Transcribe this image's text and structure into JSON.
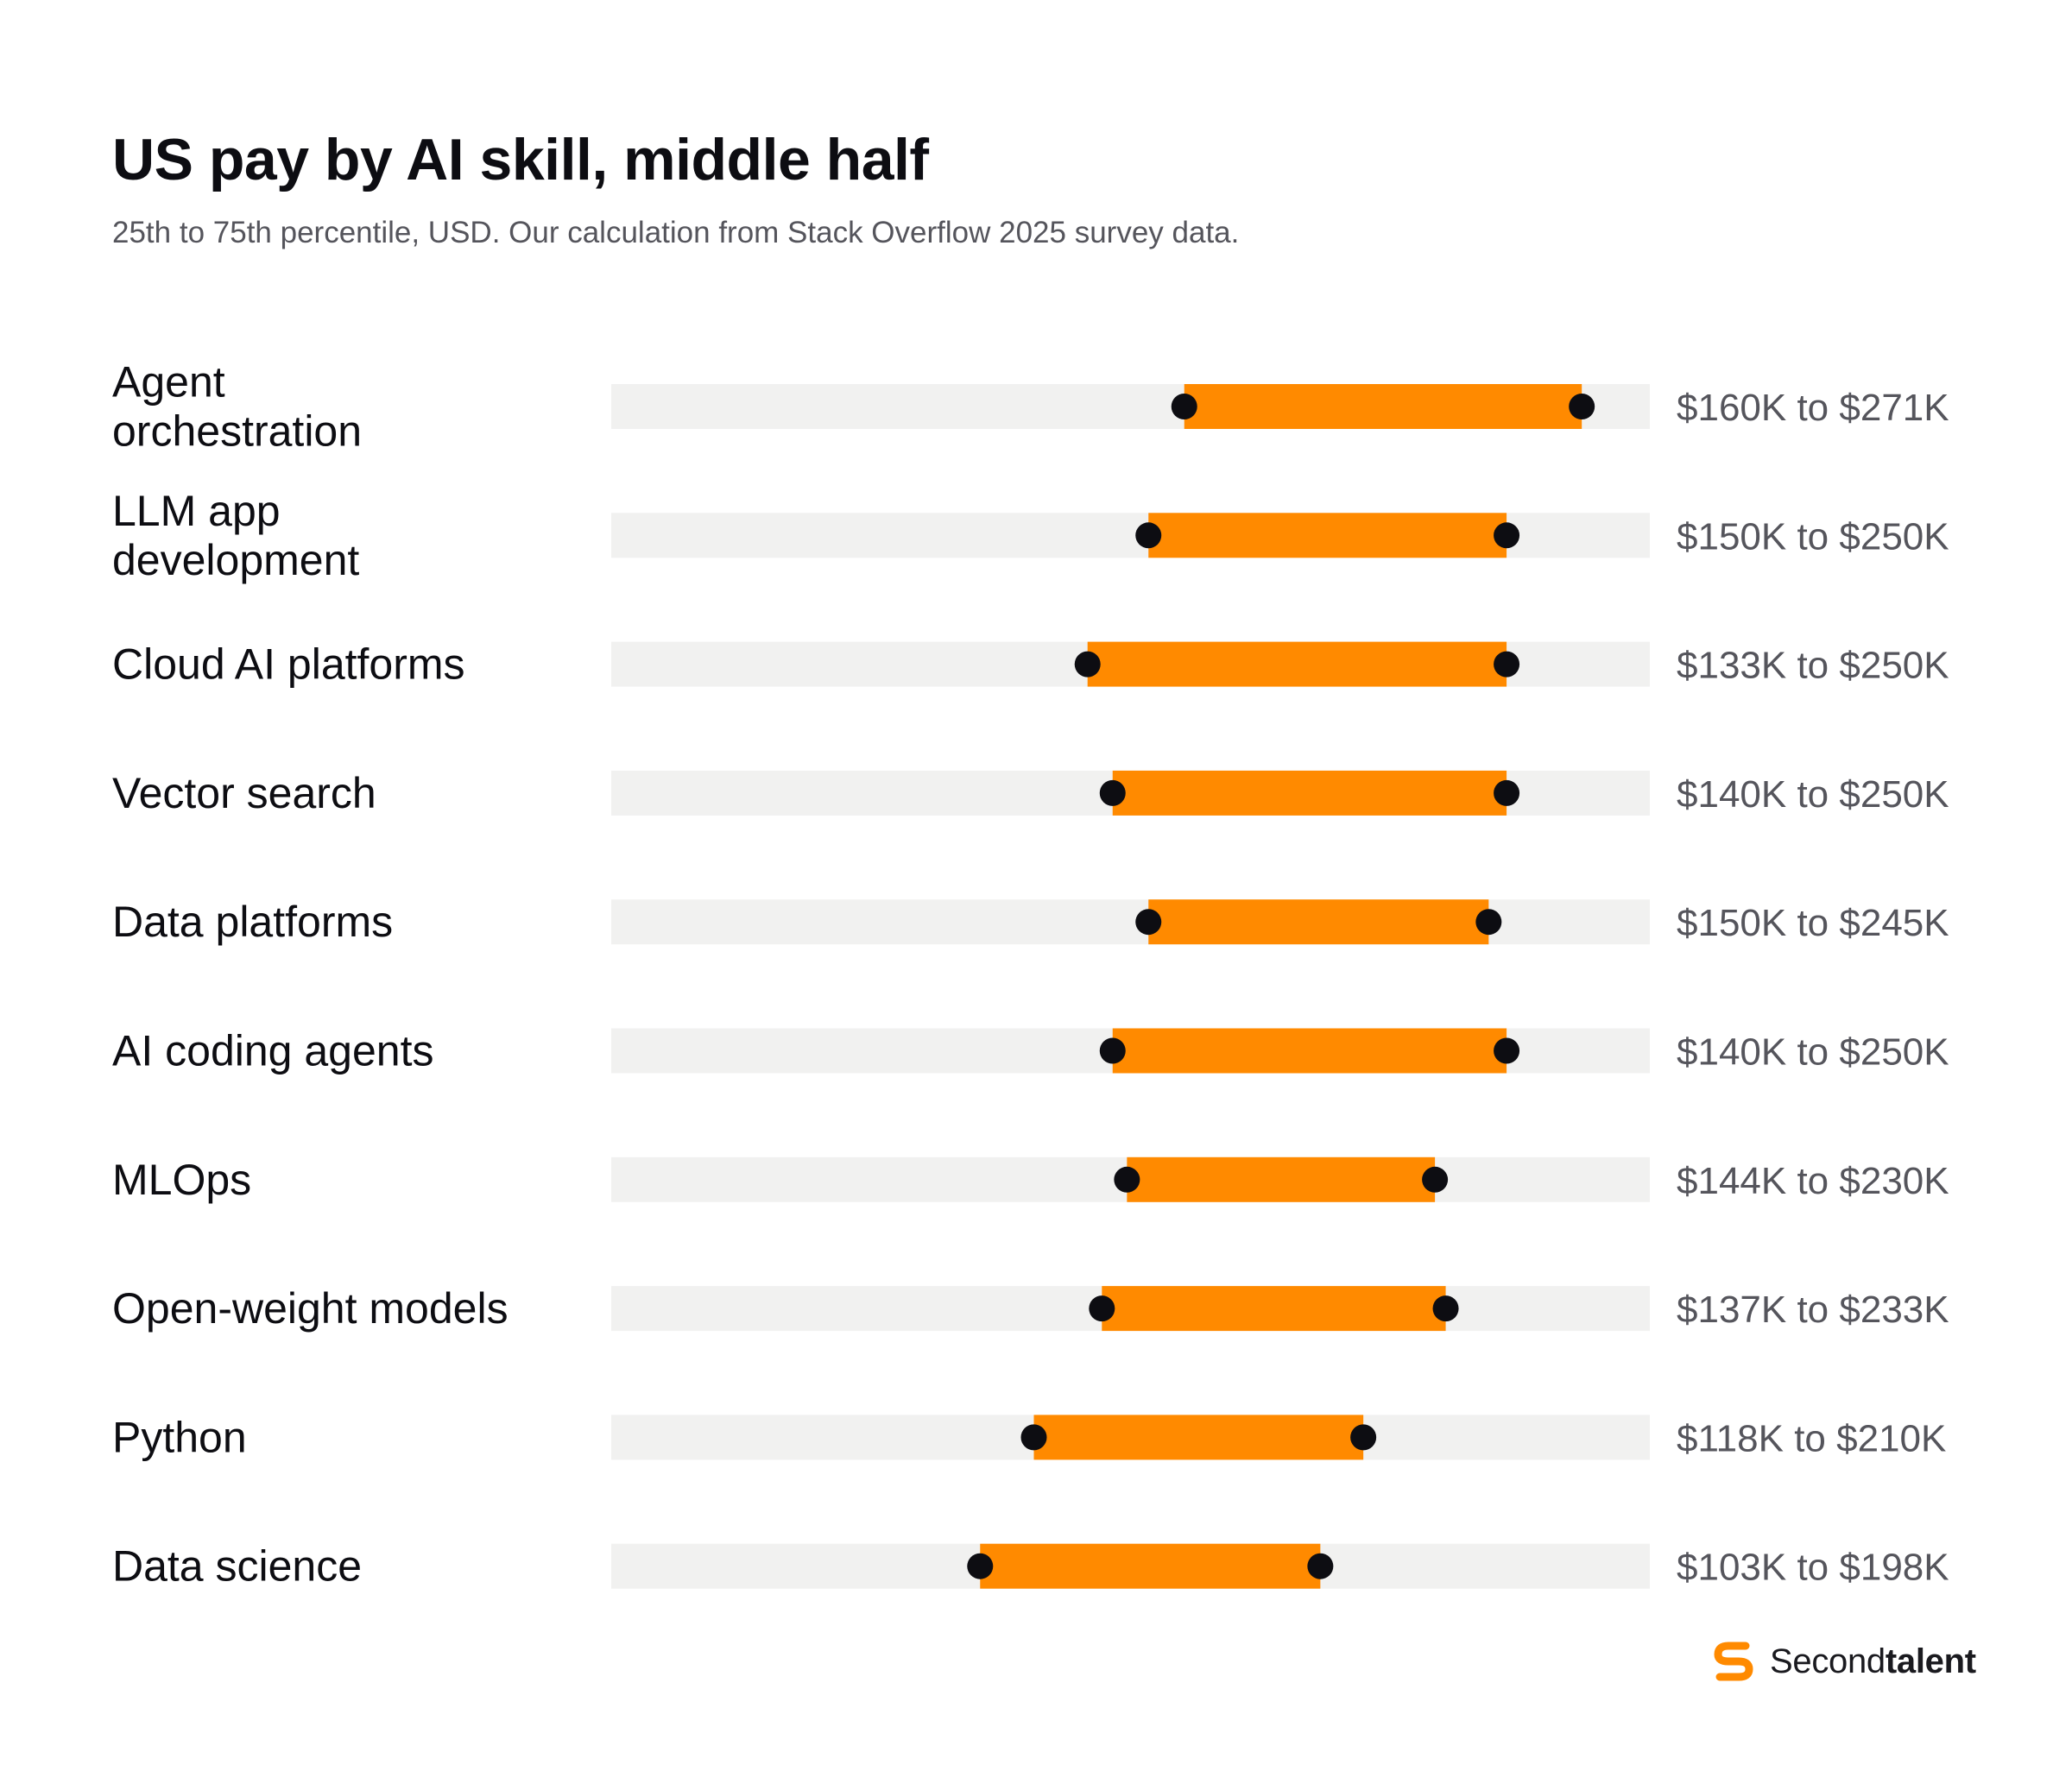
{
  "chart_data": {
    "type": "range",
    "title": "US pay by AI skill, middle half",
    "subtitle": "25th to 75th percentile, USD. Our calculation from Stack Overflow 2025 survey data.",
    "unit": "USD thousands",
    "xlim": [
      0,
      290
    ],
    "grid": false,
    "legend": "none",
    "colors": {
      "range_bar": "#FF8A00",
      "track": "#F1F1F0",
      "marker": "#0D0D12"
    },
    "rows": [
      {
        "label": "Agent orchestration",
        "label_lines": [
          "Agent",
          "orchestration"
        ],
        "p25": 160,
        "p75": 271,
        "range_label": "$160K to $271K"
      },
      {
        "label": "LLM app development",
        "label_lines": [
          "LLM app",
          "development"
        ],
        "p25": 150,
        "p75": 250,
        "range_label": "$150K to $250K"
      },
      {
        "label": "Cloud AI platforms",
        "label_lines": [
          "Cloud AI platforms"
        ],
        "p25": 133,
        "p75": 250,
        "range_label": "$133K to $250K"
      },
      {
        "label": "Vector search",
        "label_lines": [
          "Vector search"
        ],
        "p25": 140,
        "p75": 250,
        "range_label": "$140K to $250K"
      },
      {
        "label": "Data platforms",
        "label_lines": [
          "Data platforms"
        ],
        "p25": 150,
        "p75": 245,
        "range_label": "$150K to $245K"
      },
      {
        "label": "AI coding agents",
        "label_lines": [
          "AI coding agents"
        ],
        "p25": 140,
        "p75": 250,
        "range_label": "$140K to $250K"
      },
      {
        "label": "MLOps",
        "label_lines": [
          "MLOps"
        ],
        "p25": 144,
        "p75": 230,
        "range_label": "$144K to $230K"
      },
      {
        "label": "Open-weight models",
        "label_lines": [
          "Open-weight models"
        ],
        "p25": 137,
        "p75": 233,
        "range_label": "$137K to $233K"
      },
      {
        "label": "Python",
        "label_lines": [
          "Python"
        ],
        "p25": 118,
        "p75": 210,
        "range_label": "$118K to $210K"
      },
      {
        "label": "Data science",
        "label_lines": [
          "Data science"
        ],
        "p25": 103,
        "p75": 198,
        "range_label": "$103K to $198K"
      }
    ]
  },
  "logo": {
    "icon": "secondtalent-s-icon",
    "brand_regular": "Second",
    "brand_bold": "talent",
    "color": "#FF8A00"
  }
}
